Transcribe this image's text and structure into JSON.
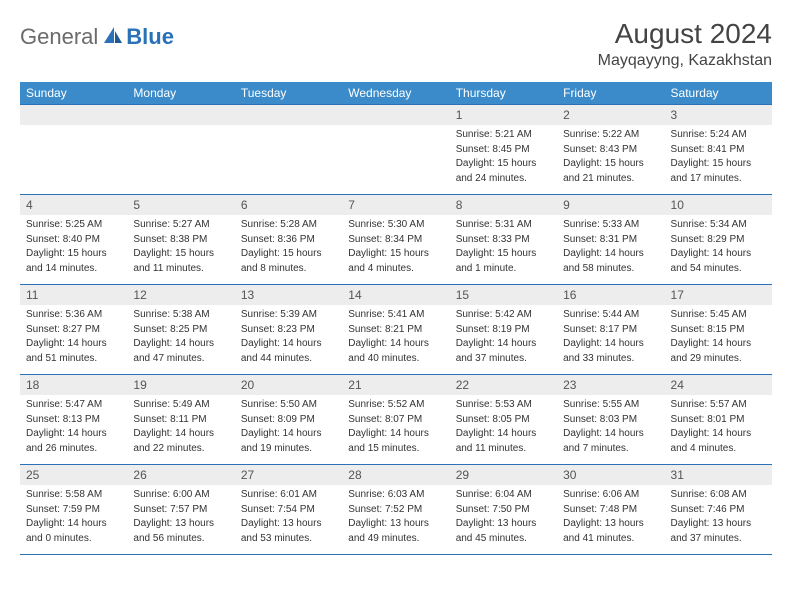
{
  "logo": {
    "text1": "General",
    "text2": "Blue"
  },
  "title": "August 2024",
  "location": "Mayqayyng, Kazakhstan",
  "colors": {
    "header_bg": "#3b8bca",
    "header_text": "#ffffff",
    "daynum_bg": "#ededed",
    "border": "#2a71b8",
    "logo_gray": "#6b6b6b",
    "logo_blue": "#2a71b8"
  },
  "type": "calendar-table",
  "day_headers": [
    "Sunday",
    "Monday",
    "Tuesday",
    "Wednesday",
    "Thursday",
    "Friday",
    "Saturday"
  ],
  "weeks": [
    [
      null,
      null,
      null,
      null,
      {
        "n": "1",
        "sr": "Sunrise: 5:21 AM",
        "ss": "Sunset: 8:45 PM",
        "d1": "Daylight: 15 hours",
        "d2": "and 24 minutes."
      },
      {
        "n": "2",
        "sr": "Sunrise: 5:22 AM",
        "ss": "Sunset: 8:43 PM",
        "d1": "Daylight: 15 hours",
        "d2": "and 21 minutes."
      },
      {
        "n": "3",
        "sr": "Sunrise: 5:24 AM",
        "ss": "Sunset: 8:41 PM",
        "d1": "Daylight: 15 hours",
        "d2": "and 17 minutes."
      }
    ],
    [
      {
        "n": "4",
        "sr": "Sunrise: 5:25 AM",
        "ss": "Sunset: 8:40 PM",
        "d1": "Daylight: 15 hours",
        "d2": "and 14 minutes."
      },
      {
        "n": "5",
        "sr": "Sunrise: 5:27 AM",
        "ss": "Sunset: 8:38 PM",
        "d1": "Daylight: 15 hours",
        "d2": "and 11 minutes."
      },
      {
        "n": "6",
        "sr": "Sunrise: 5:28 AM",
        "ss": "Sunset: 8:36 PM",
        "d1": "Daylight: 15 hours",
        "d2": "and 8 minutes."
      },
      {
        "n": "7",
        "sr": "Sunrise: 5:30 AM",
        "ss": "Sunset: 8:34 PM",
        "d1": "Daylight: 15 hours",
        "d2": "and 4 minutes."
      },
      {
        "n": "8",
        "sr": "Sunrise: 5:31 AM",
        "ss": "Sunset: 8:33 PM",
        "d1": "Daylight: 15 hours",
        "d2": "and 1 minute."
      },
      {
        "n": "9",
        "sr": "Sunrise: 5:33 AM",
        "ss": "Sunset: 8:31 PM",
        "d1": "Daylight: 14 hours",
        "d2": "and 58 minutes."
      },
      {
        "n": "10",
        "sr": "Sunrise: 5:34 AM",
        "ss": "Sunset: 8:29 PM",
        "d1": "Daylight: 14 hours",
        "d2": "and 54 minutes."
      }
    ],
    [
      {
        "n": "11",
        "sr": "Sunrise: 5:36 AM",
        "ss": "Sunset: 8:27 PM",
        "d1": "Daylight: 14 hours",
        "d2": "and 51 minutes."
      },
      {
        "n": "12",
        "sr": "Sunrise: 5:38 AM",
        "ss": "Sunset: 8:25 PM",
        "d1": "Daylight: 14 hours",
        "d2": "and 47 minutes."
      },
      {
        "n": "13",
        "sr": "Sunrise: 5:39 AM",
        "ss": "Sunset: 8:23 PM",
        "d1": "Daylight: 14 hours",
        "d2": "and 44 minutes."
      },
      {
        "n": "14",
        "sr": "Sunrise: 5:41 AM",
        "ss": "Sunset: 8:21 PM",
        "d1": "Daylight: 14 hours",
        "d2": "and 40 minutes."
      },
      {
        "n": "15",
        "sr": "Sunrise: 5:42 AM",
        "ss": "Sunset: 8:19 PM",
        "d1": "Daylight: 14 hours",
        "d2": "and 37 minutes."
      },
      {
        "n": "16",
        "sr": "Sunrise: 5:44 AM",
        "ss": "Sunset: 8:17 PM",
        "d1": "Daylight: 14 hours",
        "d2": "and 33 minutes."
      },
      {
        "n": "17",
        "sr": "Sunrise: 5:45 AM",
        "ss": "Sunset: 8:15 PM",
        "d1": "Daylight: 14 hours",
        "d2": "and 29 minutes."
      }
    ],
    [
      {
        "n": "18",
        "sr": "Sunrise: 5:47 AM",
        "ss": "Sunset: 8:13 PM",
        "d1": "Daylight: 14 hours",
        "d2": "and 26 minutes."
      },
      {
        "n": "19",
        "sr": "Sunrise: 5:49 AM",
        "ss": "Sunset: 8:11 PM",
        "d1": "Daylight: 14 hours",
        "d2": "and 22 minutes."
      },
      {
        "n": "20",
        "sr": "Sunrise: 5:50 AM",
        "ss": "Sunset: 8:09 PM",
        "d1": "Daylight: 14 hours",
        "d2": "and 19 minutes."
      },
      {
        "n": "21",
        "sr": "Sunrise: 5:52 AM",
        "ss": "Sunset: 8:07 PM",
        "d1": "Daylight: 14 hours",
        "d2": "and 15 minutes."
      },
      {
        "n": "22",
        "sr": "Sunrise: 5:53 AM",
        "ss": "Sunset: 8:05 PM",
        "d1": "Daylight: 14 hours",
        "d2": "and 11 minutes."
      },
      {
        "n": "23",
        "sr": "Sunrise: 5:55 AM",
        "ss": "Sunset: 8:03 PM",
        "d1": "Daylight: 14 hours",
        "d2": "and 7 minutes."
      },
      {
        "n": "24",
        "sr": "Sunrise: 5:57 AM",
        "ss": "Sunset: 8:01 PM",
        "d1": "Daylight: 14 hours",
        "d2": "and 4 minutes."
      }
    ],
    [
      {
        "n": "25",
        "sr": "Sunrise: 5:58 AM",
        "ss": "Sunset: 7:59 PM",
        "d1": "Daylight: 14 hours",
        "d2": "and 0 minutes."
      },
      {
        "n": "26",
        "sr": "Sunrise: 6:00 AM",
        "ss": "Sunset: 7:57 PM",
        "d1": "Daylight: 13 hours",
        "d2": "and 56 minutes."
      },
      {
        "n": "27",
        "sr": "Sunrise: 6:01 AM",
        "ss": "Sunset: 7:54 PM",
        "d1": "Daylight: 13 hours",
        "d2": "and 53 minutes."
      },
      {
        "n": "28",
        "sr": "Sunrise: 6:03 AM",
        "ss": "Sunset: 7:52 PM",
        "d1": "Daylight: 13 hours",
        "d2": "and 49 minutes."
      },
      {
        "n": "29",
        "sr": "Sunrise: 6:04 AM",
        "ss": "Sunset: 7:50 PM",
        "d1": "Daylight: 13 hours",
        "d2": "and 45 minutes."
      },
      {
        "n": "30",
        "sr": "Sunrise: 6:06 AM",
        "ss": "Sunset: 7:48 PM",
        "d1": "Daylight: 13 hours",
        "d2": "and 41 minutes."
      },
      {
        "n": "31",
        "sr": "Sunrise: 6:08 AM",
        "ss": "Sunset: 7:46 PM",
        "d1": "Daylight: 13 hours",
        "d2": "and 37 minutes."
      }
    ]
  ]
}
